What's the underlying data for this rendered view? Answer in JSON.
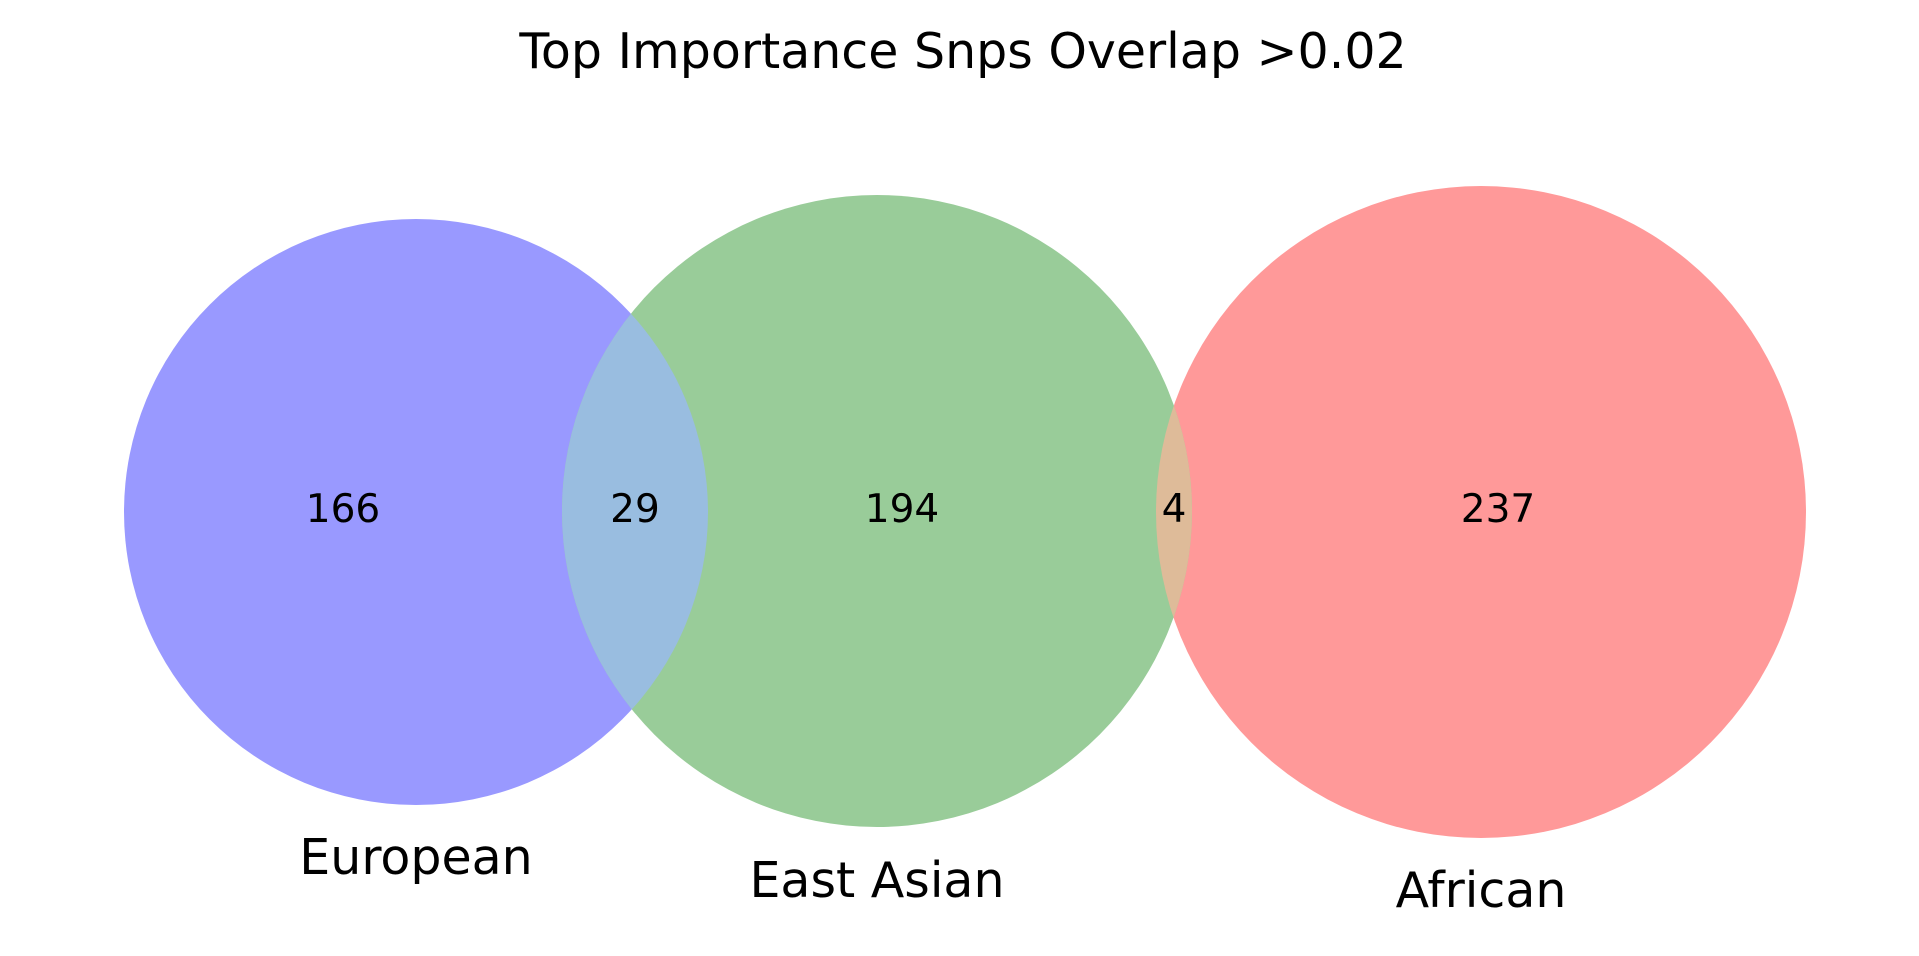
{
  "diagram": {
    "type": "venn",
    "title": "Top Importance Snps Overlap >0.02",
    "sets": [
      {
        "key": "european",
        "label": "European",
        "color": "#9999ff"
      },
      {
        "key": "east_asian",
        "label": "East Asian",
        "color": "#99cc99"
      },
      {
        "key": "african",
        "label": "African",
        "color": "#ff9999"
      }
    ],
    "regions": {
      "european_only": "166",
      "european_east_asian": "29",
      "east_asian_only": "194",
      "east_asian_african": "4",
      "african_only": "237"
    },
    "region_colors": {
      "european_east_asian": "#99bde0",
      "east_asian_african": "#debb99"
    }
  }
}
